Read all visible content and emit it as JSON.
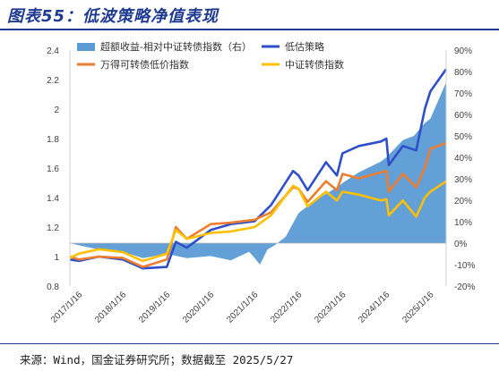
{
  "figure": {
    "title": "图表55：低波策略净值表现",
    "source": "来源：Wind，国金证券研究所；数据截至 2025/5/27"
  },
  "chart_data": {
    "type": "line",
    "title": "",
    "xlabel": "",
    "ylabel": "",
    "categories": [
      "2017/1/16",
      "2018/1/16",
      "2019/1/16",
      "2020/1/16",
      "2021/1/16",
      "2022/1/16",
      "2023/1/16",
      "2024/1/16",
      "2025/1/16"
    ],
    "x_range": [
      "2016-11-01",
      "2025-05-27"
    ],
    "ylim_left": [
      0.8,
      2.4
    ],
    "yticks_left": [
      "0.8",
      "1",
      "1.2",
      "1.4",
      "1.6",
      "1.8",
      "2",
      "2.2",
      "2.4"
    ],
    "ylim_right": [
      -20,
      90
    ],
    "yticks_right": [
      "-20%",
      "-10%",
      "0%",
      "10%",
      "20%",
      "30%",
      "40%",
      "50%",
      "60%",
      "70%",
      "80%",
      "90%"
    ],
    "legend_position": "top",
    "series": [
      {
        "name": "超额收益-相对中证转债指数（右）",
        "kind": "area",
        "axis": "right",
        "color": "#5b9bd5",
        "x": [
          "2016-11-01",
          "2017-01-16",
          "2017-07-01",
          "2018-01-16",
          "2018-07-01",
          "2019-01-16",
          "2019-07-01",
          "2020-01-16",
          "2020-07-01",
          "2020-12-01",
          "2021-01-16",
          "2021-03-01",
          "2021-05-01",
          "2021-07-01",
          "2021-10-01",
          "2022-01-16",
          "2022-06-01",
          "2022-12-01",
          "2023-01-16",
          "2023-06-01",
          "2023-12-01",
          "2024-01-16",
          "2024-06-01",
          "2024-09-01",
          "2024-12-01",
          "2025-01-16",
          "2025-05-27"
        ],
        "values": [
          0,
          -1,
          -3,
          -4,
          -7,
          -5,
          -7,
          -6,
          -8,
          -4,
          -7,
          -10,
          -3,
          -1,
          3,
          14,
          20,
          26,
          28,
          33,
          38,
          40,
          48,
          50,
          56,
          58,
          75
        ]
      },
      {
        "name": "低估策略",
        "kind": "line",
        "axis": "left",
        "color": "#2e4fc8",
        "x": [
          "2016-11-01",
          "2017-01-16",
          "2017-07-01",
          "2018-01-16",
          "2018-07-01",
          "2019-01-16",
          "2019-04-01",
          "2019-07-01",
          "2020-01-16",
          "2020-07-01",
          "2021-01-16",
          "2021-06-01",
          "2021-12-01",
          "2022-01-16",
          "2022-04-01",
          "2022-09-01",
          "2022-12-01",
          "2023-01-16",
          "2023-06-01",
          "2023-12-01",
          "2024-01-16",
          "2024-02-05",
          "2024-06-01",
          "2024-09-20",
          "2024-12-01",
          "2025-01-16",
          "2025-05-27"
        ],
        "values": [
          0.98,
          0.97,
          1.0,
          0.98,
          0.92,
          0.93,
          1.1,
          1.06,
          1.18,
          1.22,
          1.24,
          1.35,
          1.58,
          1.55,
          1.45,
          1.64,
          1.55,
          1.7,
          1.75,
          1.78,
          1.8,
          1.62,
          1.75,
          1.72,
          2.0,
          2.12,
          2.27
        ]
      },
      {
        "name": "万得可转债低价指数",
        "kind": "line",
        "axis": "left",
        "color": "#ed7d31",
        "x": [
          "2016-11-01",
          "2017-01-16",
          "2017-07-01",
          "2018-01-16",
          "2018-07-01",
          "2019-01-16",
          "2019-04-01",
          "2019-07-01",
          "2020-01-16",
          "2020-07-01",
          "2021-01-16",
          "2021-06-01",
          "2021-12-01",
          "2022-01-16",
          "2022-04-01",
          "2022-09-01",
          "2022-12-01",
          "2023-01-16",
          "2023-06-01",
          "2023-12-01",
          "2024-01-16",
          "2024-02-05",
          "2024-06-01",
          "2024-09-20",
          "2024-12-01",
          "2025-01-16",
          "2025-05-27"
        ],
        "values": [
          1.0,
          0.98,
          1.0,
          0.99,
          0.93,
          0.98,
          1.2,
          1.12,
          1.22,
          1.23,
          1.25,
          1.3,
          1.47,
          1.46,
          1.37,
          1.51,
          1.45,
          1.56,
          1.53,
          1.57,
          1.58,
          1.44,
          1.56,
          1.47,
          1.6,
          1.73,
          1.77
        ]
      },
      {
        "name": "中证转债指数",
        "kind": "line",
        "axis": "left",
        "color": "#ffc000",
        "x": [
          "2016-11-01",
          "2017-01-16",
          "2017-07-01",
          "2018-01-16",
          "2018-07-01",
          "2019-01-16",
          "2019-04-01",
          "2019-07-01",
          "2020-01-16",
          "2020-07-01",
          "2021-01-16",
          "2021-06-01",
          "2021-12-01",
          "2022-01-16",
          "2022-04-01",
          "2022-09-01",
          "2022-12-01",
          "2023-01-16",
          "2023-06-01",
          "2023-12-01",
          "2024-01-16",
          "2024-02-05",
          "2024-06-01",
          "2024-09-20",
          "2024-12-01",
          "2025-01-16",
          "2025-05-27"
        ],
        "values": [
          0.99,
          1.02,
          1.05,
          1.03,
          0.97,
          1.02,
          1.18,
          1.12,
          1.16,
          1.17,
          1.2,
          1.28,
          1.48,
          1.46,
          1.34,
          1.44,
          1.38,
          1.44,
          1.42,
          1.38,
          1.39,
          1.28,
          1.38,
          1.27,
          1.4,
          1.44,
          1.51
        ]
      }
    ]
  }
}
